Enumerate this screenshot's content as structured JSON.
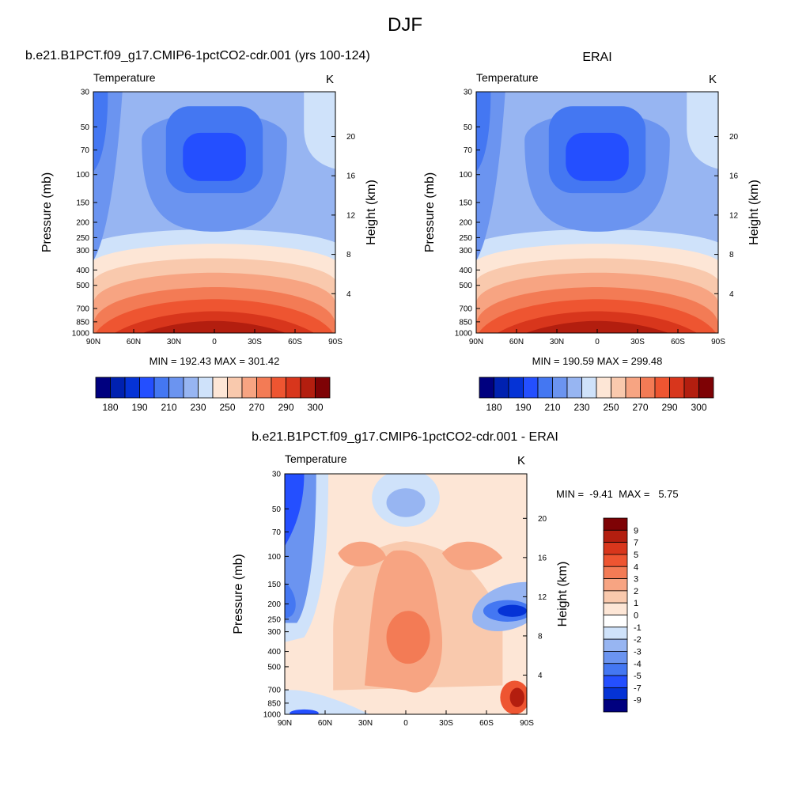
{
  "figure_title": "DJF",
  "palette": {
    "abs": [
      "#00007f",
      "#0021b0",
      "#0533d6",
      "#244fff",
      "#4477f2",
      "#6b94f0",
      "#97b5f2",
      "#cfe2fa",
      "#fde6d6",
      "#f9c9ad",
      "#f7a482",
      "#f37b55",
      "#ee5531",
      "#d8361c",
      "#b31e0f",
      "#7e0205"
    ],
    "diff": [
      "#00007f",
      "#0533d6",
      "#244fff",
      "#4477f2",
      "#6b94f0",
      "#97b5f2",
      "#cfe2fa",
      "#ffffff",
      "#fde6d6",
      "#f9c9ad",
      "#f7a482",
      "#f37b55",
      "#ee5531",
      "#d8361c",
      "#b31e0f",
      "#7e0205"
    ]
  },
  "panels": [
    {
      "title": "b.e21.B1PCT.f09_g17.CMIP6-1pctCO2-cdr.001 (yrs 100-124)",
      "var_label": "Temperature",
      "units": "K",
      "stats": "MIN = 192.43  MAX = 301.42"
    },
    {
      "title": "ERAI",
      "var_label": "Temperature",
      "units": "K",
      "stats": "MIN = 190.59  MAX = 299.48"
    },
    {
      "title": "b.e21.B1PCT.f09_g17.CMIP6-1pctCO2-cdr.001 - ERAI",
      "var_label": "Temperature",
      "units": "K",
      "stats": "MIN =  -9.41  MAX =   5.75"
    }
  ],
  "chart_data": [
    {
      "type": "heatmap",
      "title": "b.e21.B1PCT.f09_g17.CMIP6-1pctCO2-cdr.001 (yrs 100-124)",
      "subtitle": "Temperature",
      "units": "K",
      "xlabel": "",
      "ylabel": "Pressure (mb)",
      "ylabel_right": "Height (km)",
      "x_ticks": [
        "90N",
        "60N",
        "30N",
        "0",
        "30S",
        "60S",
        "90S"
      ],
      "y_ticks": [
        "30",
        "50",
        "70",
        "100",
        "150",
        "200",
        "250",
        "300",
        "400",
        "500",
        "700",
        "850",
        "1000"
      ],
      "right_ticks": [
        "4",
        "8",
        "12",
        "16",
        "20"
      ],
      "min": 192.43,
      "max": 301.42,
      "colorbar_labels": [
        "180",
        "190",
        "210",
        "230",
        "250",
        "270",
        "290",
        "300"
      ]
    },
    {
      "type": "heatmap",
      "title": "ERAI",
      "subtitle": "Temperature",
      "units": "K",
      "xlabel": "",
      "ylabel": "Pressure (mb)",
      "ylabel_right": "Height (km)",
      "x_ticks": [
        "90N",
        "60N",
        "30N",
        "0",
        "30S",
        "60S",
        "90S"
      ],
      "y_ticks": [
        "30",
        "50",
        "70",
        "100",
        "150",
        "200",
        "250",
        "300",
        "400",
        "500",
        "700",
        "850",
        "1000"
      ],
      "right_ticks": [
        "4",
        "8",
        "12",
        "16",
        "20"
      ],
      "min": 190.59,
      "max": 299.48,
      "colorbar_labels": [
        "180",
        "190",
        "210",
        "230",
        "250",
        "270",
        "290",
        "300"
      ]
    },
    {
      "type": "heatmap",
      "title": "b.e21.B1PCT.f09_g17.CMIP6-1pctCO2-cdr.001 - ERAI",
      "subtitle": "Temperature",
      "units": "K",
      "xlabel": "",
      "ylabel": "Pressure (mb)",
      "ylabel_right": "Height (km)",
      "x_ticks": [
        "90N",
        "60N",
        "30N",
        "0",
        "30S",
        "60S",
        "90S"
      ],
      "y_ticks": [
        "30",
        "50",
        "70",
        "100",
        "150",
        "200",
        "250",
        "300",
        "400",
        "500",
        "700",
        "850",
        "1000"
      ],
      "right_ticks": [
        "4",
        "8",
        "12",
        "16",
        "20"
      ],
      "min": -9.41,
      "max": 5.75,
      "colorbar_labels": [
        "9",
        "7",
        "5",
        "4",
        "3",
        "2",
        "1",
        "0",
        "-1",
        "-2",
        "-3",
        "-4",
        "-5",
        "-7",
        "-9"
      ]
    }
  ]
}
